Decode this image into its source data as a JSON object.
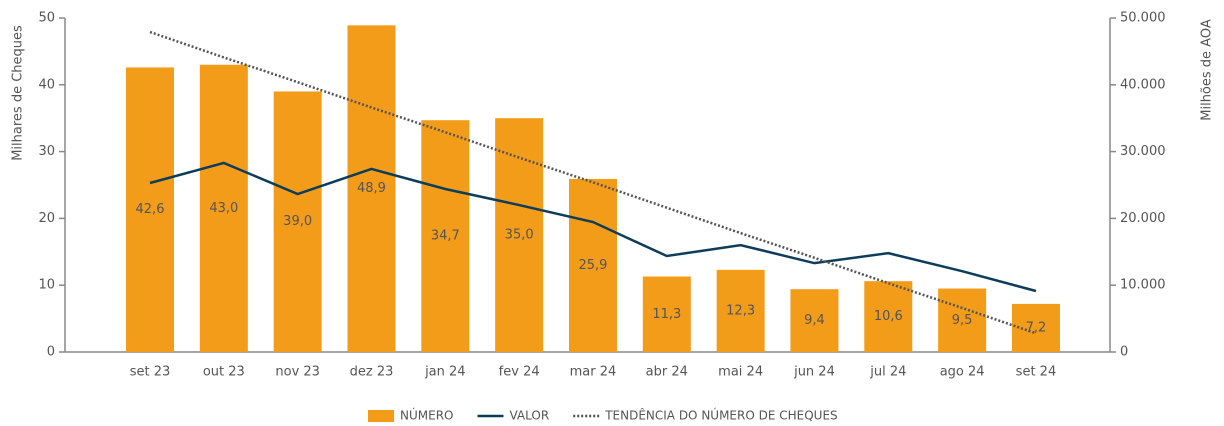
{
  "chart_data": {
    "type": "bar",
    "categories": [
      "set 23",
      "out 23",
      "nov 23",
      "dez 23",
      "jan 24",
      "fev 24",
      "mar 24",
      "abr 24",
      "mai 24",
      "jun 24",
      "jul 24",
      "ago 24",
      "set 24"
    ],
    "series": [
      {
        "name": "NÚMERO",
        "color": "#F39C1A",
        "type": "bar",
        "values": [
          42.6,
          43.0,
          39.0,
          48.9,
          34.7,
          35.0,
          25.9,
          11.3,
          12.3,
          9.4,
          10.6,
          9.5,
          7.2
        ],
        "value_labels": [
          "42,6",
          "43,0",
          "39,0",
          "48,9",
          "34,7",
          "35,0",
          "25,9",
          "11,3",
          "12,3",
          "9,4",
          "10,6",
          "9,5",
          "7,2"
        ]
      },
      {
        "name": "VALOR",
        "color": "#0E3D5C",
        "type": "line",
        "axis": "y2",
        "values": [
          25300,
          28300,
          23650,
          27400,
          24400,
          22000,
          19460,
          14370,
          16000,
          13300,
          14800,
          12100,
          9130
        ]
      },
      {
        "name": "TENDÊNCIA DO NÚMERO DE CHEQUES",
        "color": "#555555",
        "type": "dotted",
        "values": [
          47.9,
          44.1,
          40.4,
          36.6,
          32.9,
          29.1,
          25.4,
          21.6,
          17.8,
          14.1,
          10.3,
          6.6,
          2.8
        ]
      }
    ],
    "y_label": "Milhares de Cheques",
    "y2_label": "Milhões de AOA",
    "ylim": [
      0,
      50
    ],
    "yticks": [
      0,
      10,
      20,
      30,
      40,
      50
    ],
    "y2lim": [
      0,
      50000
    ],
    "y2ticks": [
      0,
      {
        "value": 10000,
        "label": "10.000"
      },
      {
        "value": 20000,
        "label": "20.000"
      },
      {
        "value": 30000,
        "label": "30.000"
      },
      {
        "value": 40000,
        "label": "40.000"
      },
      {
        "value": 50000,
        "label": "50.000"
      }
    ],
    "legend": "bottom"
  }
}
